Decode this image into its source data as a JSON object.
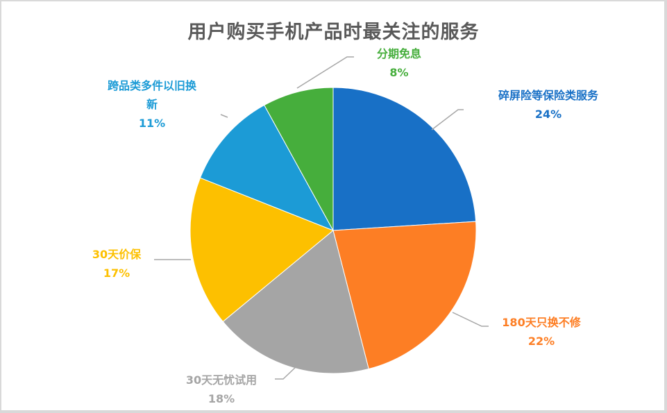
{
  "chart_data": {
    "type": "pie",
    "title": "用户购买手机产品时最关注的服务",
    "categories": [
      "碎屏险等保险类服务",
      "180天只换不修",
      "30天无忧试用",
      "30天价保",
      "跨品类多件以旧换新",
      "分期免息"
    ],
    "values": [
      24,
      22,
      18,
      17,
      11,
      8
    ],
    "unit": "%",
    "colors": [
      "#1870c6",
      "#fd7e24",
      "#a5a5a5",
      "#fdc000",
      "#1c9bd6",
      "#46ae3c"
    ],
    "start_angle": "12 o'clock, clockwise",
    "legend": "none (data labels with leader lines)"
  },
  "labels": [
    {
      "name": "碎屏险等保险类服务",
      "value": "24%",
      "color": "#1870c6"
    },
    {
      "name": "180天只换不修",
      "value": "22%",
      "color": "#fd7e24"
    },
    {
      "name": "30天无忧试用",
      "value": "18%",
      "color": "#a5a5a5"
    },
    {
      "name": "30天价保",
      "value": "17%",
      "color": "#fdc000"
    },
    {
      "name_line1": "跨品类多件以旧换",
      "name_line2": "新",
      "value": "11%",
      "color": "#1c9bd6"
    },
    {
      "name": "分期免息",
      "value": "8%",
      "color": "#46ae3c"
    }
  ]
}
